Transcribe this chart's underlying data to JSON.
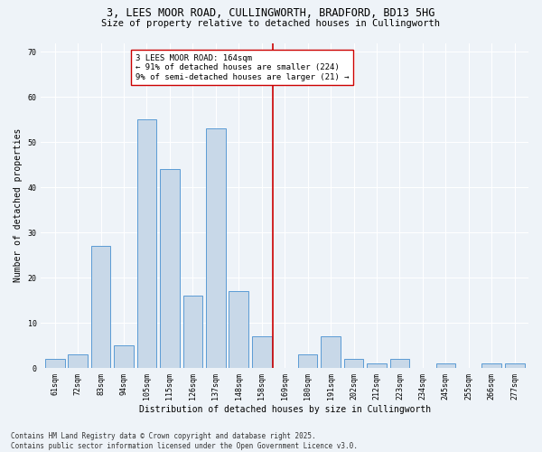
{
  "title_line1": "3, LEES MOOR ROAD, CULLINGWORTH, BRADFORD, BD13 5HG",
  "title_line2": "Size of property relative to detached houses in Cullingworth",
  "xlabel": "Distribution of detached houses by size in Cullingworth",
  "ylabel": "Number of detached properties",
  "bar_labels": [
    "61sqm",
    "72sqm",
    "83sqm",
    "94sqm",
    "105sqm",
    "115sqm",
    "126sqm",
    "137sqm",
    "148sqm",
    "158sqm",
    "169sqm",
    "180sqm",
    "191sqm",
    "202sqm",
    "212sqm",
    "223sqm",
    "234sqm",
    "245sqm",
    "255sqm",
    "266sqm",
    "277sqm"
  ],
  "bar_values": [
    2,
    3,
    27,
    5,
    55,
    44,
    16,
    53,
    17,
    7,
    0,
    3,
    7,
    2,
    1,
    2,
    0,
    1,
    0,
    1,
    1
  ],
  "bar_color": "#c8d8e8",
  "bar_edge_color": "#5b9bd5",
  "vline_x": 9.5,
  "vline_color": "#cc0000",
  "annotation_text": "3 LEES MOOR ROAD: 164sqm\n← 91% of detached houses are smaller (224)\n9% of semi-detached houses are larger (21) →",
  "annotation_box_color": "#ffffff",
  "annotation_box_edge": "#cc0000",
  "yticks": [
    0,
    10,
    20,
    30,
    40,
    50,
    60,
    70
  ],
  "ylim": [
    0,
    72
  ],
  "background_color": "#eef3f8",
  "grid_color": "#ffffff",
  "footer_text": "Contains HM Land Registry data © Crown copyright and database right 2025.\nContains public sector information licensed under the Open Government Licence v3.0.",
  "title_fontsize": 8.5,
  "subtitle_fontsize": 7.5,
  "axis_label_fontsize": 7,
  "tick_fontsize": 6,
  "annotation_fontsize": 6.5,
  "footer_fontsize": 5.5
}
